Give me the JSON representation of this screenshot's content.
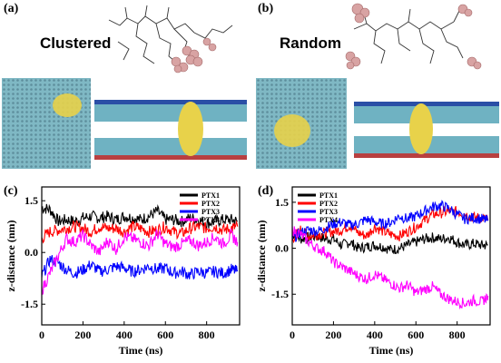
{
  "panels": {
    "a": {
      "label": "(a)",
      "title": "Clustered"
    },
    "b": {
      "label": "(b)",
      "title": "Random"
    },
    "c": {
      "label": "(c)"
    },
    "d": {
      "label": "(d)"
    }
  },
  "colors": {
    "PTX1": "#000000",
    "PTX2": "#ff0000",
    "PTX3": "#0000ff",
    "PTX4": "#ff00ff",
    "water": "#7fb8c4",
    "cluster": "#e8d24a",
    "drug": "#c99a9a"
  },
  "chart_data": [
    {
      "panel": "(c)",
      "type": "line",
      "xlabel": "Time (ns)",
      "ylabel": "z-distance (nm)",
      "xlim": [
        0,
        960
      ],
      "ylim": [
        -2.1,
        1.9
      ],
      "xticks": [
        0,
        200,
        400,
        600,
        800
      ],
      "yticks": [
        1.5,
        0.0,
        -1.5
      ],
      "ytick_labels": [
        "1.5",
        "0.0",
        "-1.5"
      ],
      "legend": [
        "PTX1",
        "PTX2",
        "PTX3",
        "PTX4"
      ],
      "legend_position": "top-right",
      "series": [
        {
          "name": "PTX1",
          "color": "#000000",
          "x": [
            0,
            40,
            80,
            120,
            160,
            200,
            240,
            280,
            320,
            360,
            400,
            440,
            480,
            520,
            560,
            600,
            640,
            680,
            720,
            760,
            800,
            840,
            880,
            920,
            950
          ],
          "values": [
            1.3,
            1.25,
            0.9,
            0.95,
            0.9,
            1.0,
            1.05,
            1.0,
            1.05,
            0.95,
            1.05,
            1.0,
            0.95,
            1.05,
            1.2,
            0.95,
            0.95,
            0.9,
            1.0,
            0.95,
            0.85,
            0.9,
            0.95,
            0.95,
            0.9
          ]
        },
        {
          "name": "PTX2",
          "color": "#ff0000",
          "x": [
            0,
            40,
            80,
            120,
            160,
            200,
            240,
            280,
            320,
            360,
            400,
            440,
            480,
            520,
            560,
            600,
            640,
            680,
            720,
            760,
            800,
            840,
            880,
            920,
            950
          ],
          "values": [
            0.4,
            0.6,
            0.65,
            0.7,
            0.75,
            0.7,
            0.6,
            0.75,
            0.7,
            0.7,
            0.6,
            0.75,
            0.7,
            0.6,
            0.65,
            0.75,
            0.6,
            0.55,
            0.7,
            0.75,
            0.7,
            0.75,
            0.65,
            0.7,
            0.75
          ]
        },
        {
          "name": "PTX3",
          "color": "#0000ff",
          "x": [
            0,
            40,
            80,
            120,
            160,
            200,
            240,
            280,
            320,
            360,
            400,
            440,
            480,
            520,
            560,
            600,
            640,
            680,
            720,
            760,
            800,
            840,
            880,
            920,
            950
          ],
          "values": [
            -0.7,
            -0.2,
            -0.3,
            -0.5,
            -0.6,
            -0.5,
            -0.35,
            -0.55,
            -0.5,
            -0.4,
            -0.45,
            -0.55,
            -0.5,
            -0.4,
            -0.5,
            -0.45,
            -0.6,
            -0.55,
            -0.65,
            -0.55,
            -0.6,
            -0.55,
            -0.6,
            -0.5,
            -0.55
          ]
        },
        {
          "name": "PTX4",
          "color": "#ff00ff",
          "x": [
            0,
            40,
            80,
            120,
            160,
            200,
            240,
            280,
            320,
            360,
            400,
            440,
            480,
            520,
            560,
            600,
            640,
            680,
            720,
            760,
            800,
            840,
            880,
            920,
            950
          ],
          "values": [
            -1.1,
            -0.6,
            -0.1,
            0.4,
            0.3,
            0.5,
            0.2,
            0.0,
            0.35,
            0.1,
            0.45,
            0.4,
            0.3,
            0.2,
            0.55,
            0.25,
            0.15,
            0.25,
            0.35,
            0.2,
            0.3,
            0.45,
            0.25,
            0.5,
            0.3
          ]
        }
      ]
    },
    {
      "panel": "(d)",
      "type": "line",
      "xlabel": "Time (ns)",
      "ylabel": "z-distance (nm)",
      "xlim": [
        0,
        960
      ],
      "ylim": [
        -2.5,
        2.0
      ],
      "xticks": [
        0,
        200,
        400,
        600,
        800
      ],
      "yticks": [
        1.5,
        0.0,
        -1.5
      ],
      "ytick_labels": [
        "1.5",
        "0.0",
        "-1.5"
      ],
      "legend": [
        "PTX1",
        "PTX2",
        "PTX3",
        "PTX4"
      ],
      "legend_position": "top-left",
      "series": [
        {
          "name": "PTX1",
          "color": "#000000",
          "x": [
            0,
            40,
            80,
            120,
            160,
            200,
            240,
            280,
            320,
            360,
            400,
            440,
            480,
            520,
            560,
            600,
            640,
            680,
            720,
            760,
            800,
            840,
            880,
            920,
            950
          ],
          "values": [
            0.5,
            0.3,
            0.35,
            0.4,
            0.3,
            0.3,
            0.1,
            0.2,
            0.0,
            0.05,
            0.1,
            0.05,
            -0.05,
            0.0,
            0.1,
            0.2,
            0.3,
            0.35,
            0.3,
            0.35,
            0.2,
            0.1,
            0.15,
            0.1,
            0.1
          ]
        },
        {
          "name": "PTX2",
          "color": "#ff0000",
          "x": [
            0,
            40,
            80,
            120,
            160,
            200,
            240,
            280,
            320,
            360,
            400,
            440,
            480,
            520,
            560,
            600,
            640,
            680,
            720,
            760,
            800,
            840,
            880,
            920,
            950
          ],
          "values": [
            0.3,
            0.6,
            0.4,
            0.45,
            0.5,
            0.55,
            0.6,
            0.75,
            0.5,
            0.4,
            0.7,
            0.55,
            0.45,
            0.4,
            0.55,
            0.7,
            0.9,
            1.1,
            1.15,
            1.2,
            1.2,
            1.1,
            1.0,
            1.0,
            0.9
          ]
        },
        {
          "name": "PTX3",
          "color": "#0000ff",
          "x": [
            0,
            40,
            80,
            120,
            160,
            200,
            240,
            280,
            320,
            360,
            400,
            440,
            480,
            520,
            560,
            600,
            640,
            680,
            720,
            760,
            800,
            840,
            880,
            920,
            950
          ],
          "values": [
            0.3,
            0.5,
            0.6,
            0.55,
            0.65,
            0.8,
            0.85,
            0.75,
            0.8,
            0.95,
            0.85,
            0.8,
            0.85,
            1.05,
            0.95,
            1.05,
            1.2,
            1.35,
            1.4,
            1.3,
            1.1,
            0.95,
            1.0,
            0.95,
            0.9
          ]
        },
        {
          "name": "PTX4",
          "color": "#ff00ff",
          "x": [
            0,
            40,
            80,
            120,
            160,
            200,
            240,
            280,
            320,
            360,
            400,
            440,
            480,
            520,
            560,
            600,
            640,
            680,
            720,
            760,
            800,
            840,
            880,
            920,
            950
          ],
          "values": [
            0.6,
            0.45,
            0.2,
            0.0,
            -0.1,
            -0.45,
            -0.6,
            -0.75,
            -0.9,
            -1.0,
            -0.85,
            -1.0,
            -1.15,
            -1.3,
            -1.2,
            -1.45,
            -1.35,
            -1.25,
            -1.5,
            -1.65,
            -1.75,
            -1.8,
            -1.7,
            -1.75,
            -1.55
          ]
        }
      ]
    }
  ]
}
